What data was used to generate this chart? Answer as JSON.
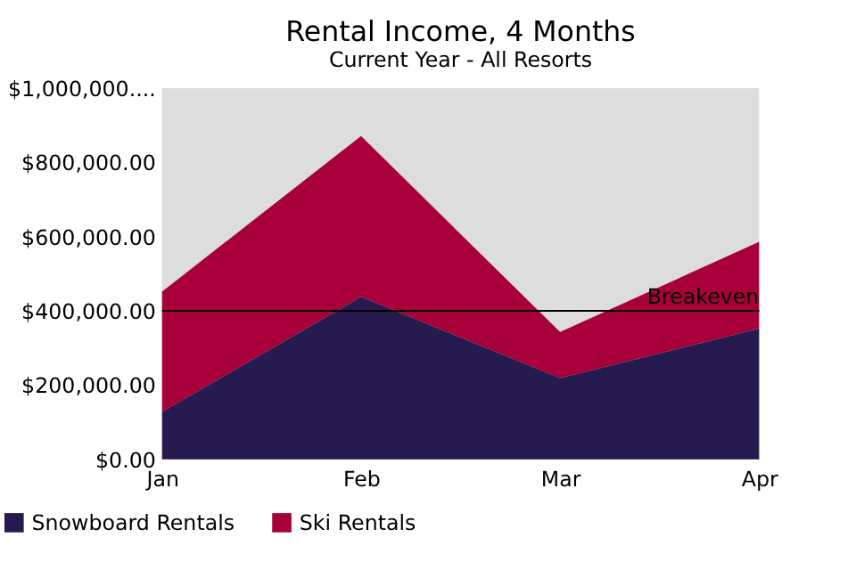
{
  "chart_data": {
    "type": "area",
    "title": "Rental Income, 4 Months",
    "subtitle": "Current Year - All Resorts",
    "categories": [
      "Jan",
      "Feb",
      "Mar",
      "Apr"
    ],
    "stacked": true,
    "series": [
      {
        "name": "Snowboard Rentals",
        "color": "#271a4f",
        "values": [
          128000,
          438000,
          219000,
          352000
        ]
      },
      {
        "name": "Ski Rentals",
        "color": "#a8003a",
        "values": [
          324000,
          433000,
          124000,
          234000
        ]
      }
    ],
    "ylim": [
      0,
      1000000
    ],
    "yticks": [
      {
        "value": 0,
        "label": "$0.00"
      },
      {
        "value": 200000,
        "label": "$200,000.00"
      },
      {
        "value": 400000,
        "label": "$400,000.00"
      },
      {
        "value": 600000,
        "label": "$600,000.00"
      },
      {
        "value": 800000,
        "label": "$800,000.00"
      },
      {
        "value": 1000000,
        "label": "$1,000,000...."
      }
    ],
    "ref_lines": [
      {
        "axis": "y",
        "value": 400000,
        "label": "Breakeven",
        "color": "#000000"
      }
    ],
    "grid": false,
    "legend": "bottom left"
  }
}
